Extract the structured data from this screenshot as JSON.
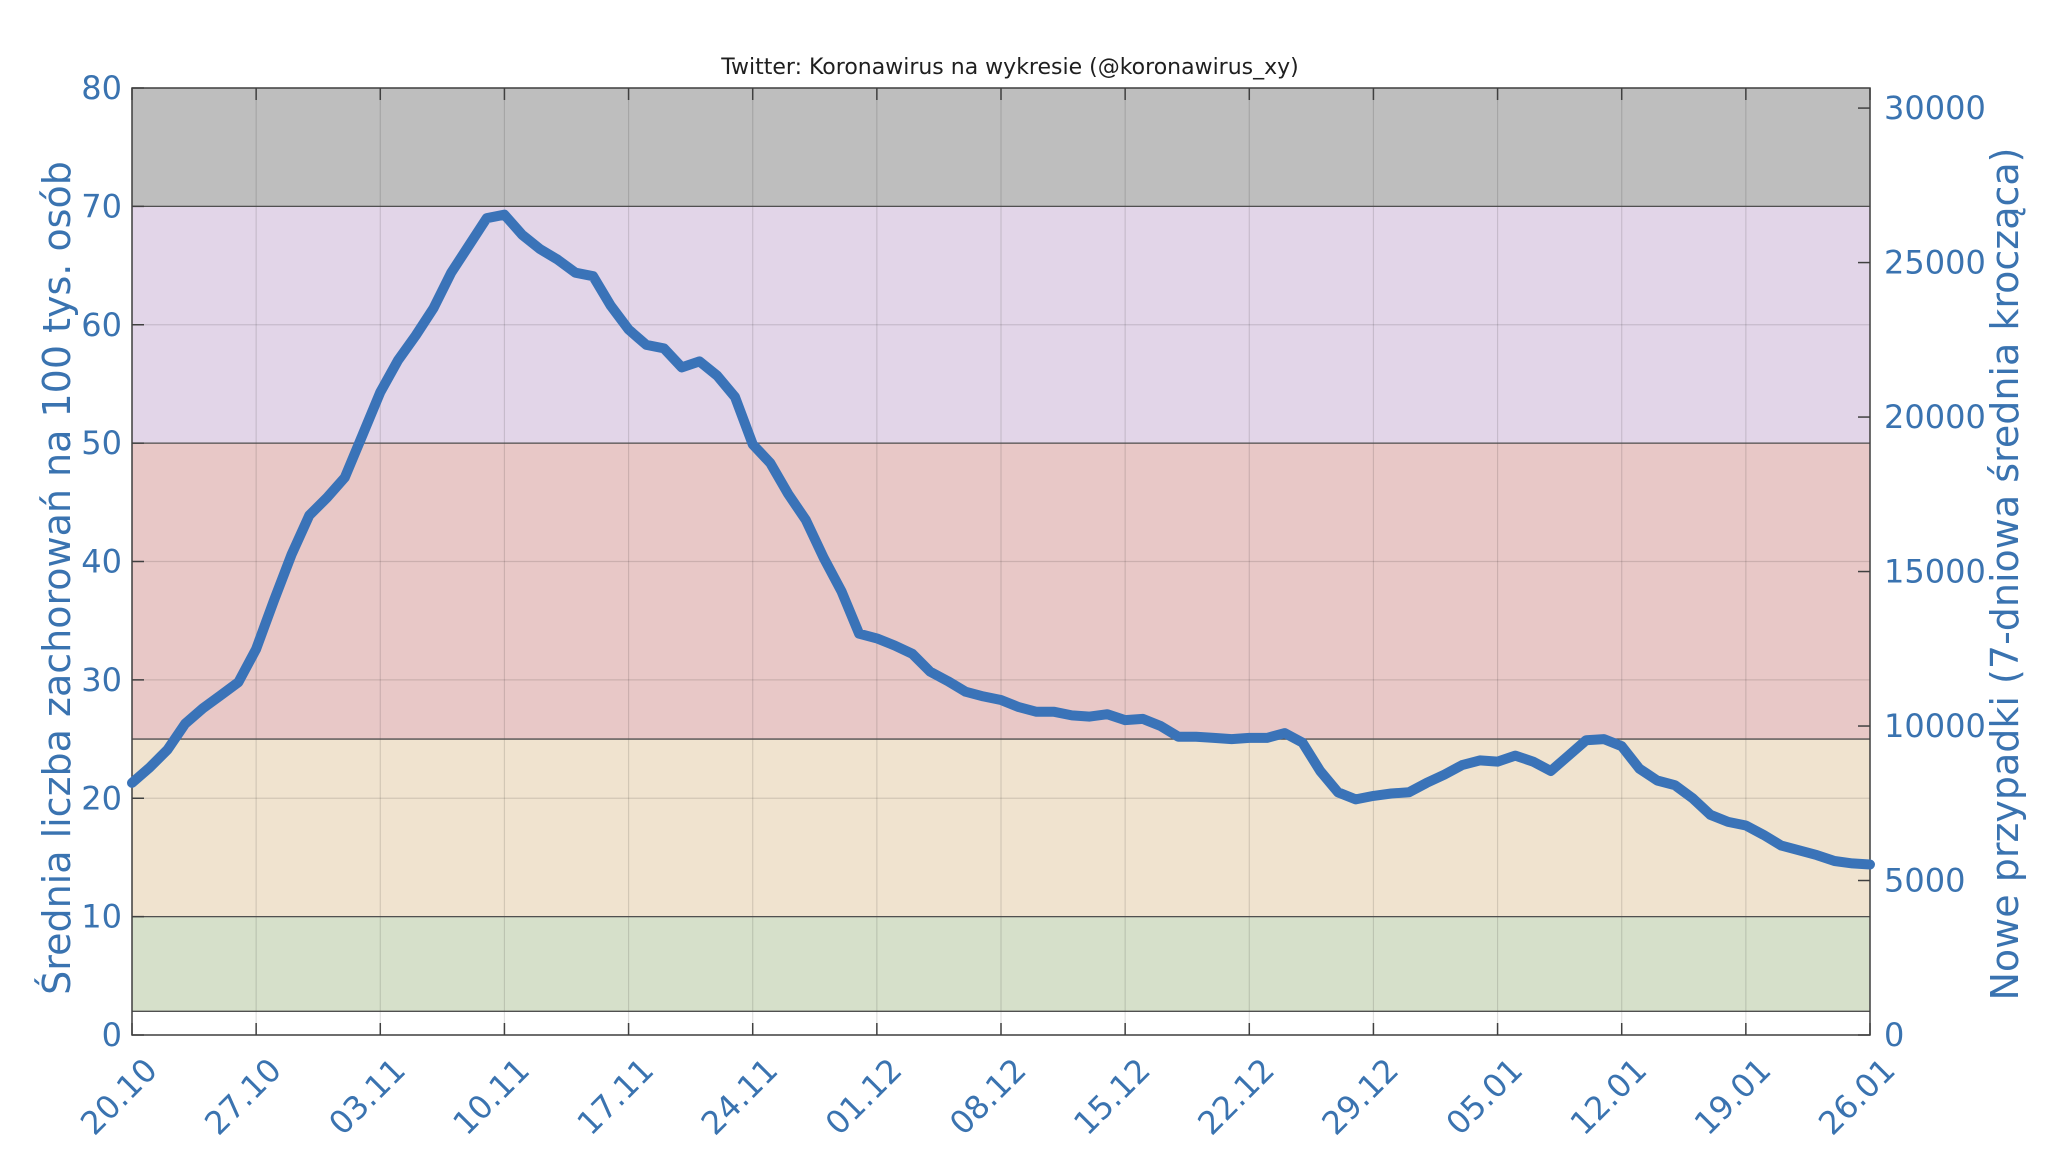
{
  "chart_data": {
    "type": "line",
    "title": "Twitter: Koronawirus na wykresie (@koronawirus_xy)",
    "ylabel_left": "Średnia liczba zachorowań na 100 tys. osób",
    "ylabel_right": "Nowe przypadki (7-dniowa średnia krocząca)",
    "ylim_left": [
      0,
      80
    ],
    "ylim_right": [
      0,
      30650
    ],
    "yticks_left": [
      0,
      10,
      20,
      30,
      40,
      50,
      60,
      70,
      80
    ],
    "yticks_left_labels": [
      "0",
      "10",
      "20",
      "30",
      "40",
      "50",
      "60",
      "70",
      "80"
    ],
    "yticks_right": [
      0,
      5000,
      10000,
      15000,
      20000,
      25000,
      30000
    ],
    "yticks_right_labels": [
      "0",
      "5000",
      "10000",
      "15000",
      "20000",
      "25000",
      "30000"
    ],
    "x_start": "2020-10-20",
    "x_end": "2021-01-26",
    "x_tick_labels": [
      "20.10",
      "27.10",
      "03.11",
      "10.11",
      "17.11",
      "24.11",
      "01.12",
      "08.12",
      "15.12",
      "22.12",
      "29.12",
      "05.01",
      "12.01",
      "19.01",
      "26.01"
    ],
    "x_tick_dates": [
      "2020-10-20",
      "2020-10-27",
      "2020-11-03",
      "2020-11-10",
      "2020-11-17",
      "2020-11-24",
      "2020-12-01",
      "2020-12-08",
      "2020-12-15",
      "2020-12-22",
      "2020-12-29",
      "2021-01-05",
      "2021-01-12",
      "2021-01-19",
      "2021-01-26"
    ],
    "grid": true,
    "bands_left": [
      {
        "from": 2,
        "to": 10,
        "color": "#d6e0ca"
      },
      {
        "from": 10,
        "to": 25,
        "color": "#f0e3cf"
      },
      {
        "from": 25,
        "to": 50,
        "color": "#e8c8c7"
      },
      {
        "from": 50,
        "to": 70,
        "color": "#e2d5e8"
      },
      {
        "from": 70,
        "to": 80,
        "color": "#bebebe"
      }
    ],
    "series": [
      {
        "color": "#3a73b8",
        "axis": "left",
        "x": [
          "2020-10-20",
          "2020-10-21",
          "2020-10-22",
          "2020-10-23",
          "2020-10-24",
          "2020-10-25",
          "2020-10-26",
          "2020-10-27",
          "2020-10-28",
          "2020-10-29",
          "2020-10-30",
          "2020-10-31",
          "2020-11-01",
          "2020-11-02",
          "2020-11-03",
          "2020-11-04",
          "2020-11-05",
          "2020-11-06",
          "2020-11-07",
          "2020-11-08",
          "2020-11-09",
          "2020-11-10",
          "2020-11-11",
          "2020-11-12",
          "2020-11-13",
          "2020-11-14",
          "2020-11-15",
          "2020-11-16",
          "2020-11-17",
          "2020-11-18",
          "2020-11-19",
          "2020-11-20",
          "2020-11-21",
          "2020-11-22",
          "2020-11-23",
          "2020-11-24",
          "2020-11-25",
          "2020-11-26",
          "2020-11-27",
          "2020-11-28",
          "2020-11-29",
          "2020-11-30",
          "2020-12-01",
          "2020-12-02",
          "2020-12-03",
          "2020-12-04",
          "2020-12-05",
          "2020-12-06",
          "2020-12-07",
          "2020-12-08",
          "2020-12-09",
          "2020-12-10",
          "2020-12-11",
          "2020-12-12",
          "2020-12-13",
          "2020-12-14",
          "2020-12-15",
          "2020-12-16",
          "2020-12-17",
          "2020-12-18",
          "2020-12-19",
          "2020-12-20",
          "2020-12-21",
          "2020-12-22",
          "2020-12-23",
          "2020-12-24",
          "2020-12-25",
          "2020-12-26",
          "2020-12-27",
          "2020-12-28",
          "2020-12-29",
          "2020-12-30",
          "2020-12-31",
          "2021-01-01",
          "2021-01-02",
          "2021-01-03",
          "2021-01-04",
          "2021-01-05",
          "2021-01-06",
          "2021-01-07",
          "2021-01-08",
          "2021-01-09",
          "2021-01-10",
          "2021-01-11",
          "2021-01-12",
          "2021-01-13",
          "2021-01-14",
          "2021-01-15",
          "2021-01-16",
          "2021-01-17",
          "2021-01-18",
          "2021-01-19",
          "2021-01-20",
          "2021-01-21",
          "2021-01-22",
          "2021-01-23",
          "2021-01-24",
          "2021-01-25",
          "2021-01-26"
        ],
        "values": [
          21.3,
          22.6,
          24.1,
          26.3,
          27.6,
          28.7,
          29.8,
          32.6,
          36.7,
          40.6,
          43.9,
          45.4,
          47.1,
          50.7,
          54.3,
          57.0,
          59.1,
          61.4,
          64.4,
          66.7,
          69.0,
          69.3,
          67.6,
          66.4,
          65.5,
          64.4,
          64.1,
          61.6,
          59.6,
          58.3,
          58.0,
          56.4,
          56.9,
          55.7,
          53.9,
          49.9,
          48.3,
          45.7,
          43.5,
          40.3,
          37.5,
          33.9,
          33.5,
          32.9,
          32.2,
          30.7,
          29.9,
          29.0,
          28.6,
          28.3,
          27.7,
          27.3,
          27.3,
          27.0,
          26.9,
          27.1,
          26.6,
          26.7,
          26.1,
          25.2,
          25.2,
          25.1,
          25.0,
          25.1,
          25.1,
          25.5,
          24.7,
          22.3,
          20.5,
          19.9,
          20.2,
          20.4,
          20.5,
          21.3,
          22.0,
          22.8,
          23.2,
          23.1,
          23.6,
          23.1,
          22.3,
          23.6,
          24.9,
          25.0,
          24.4,
          22.5,
          21.5,
          21.1,
          20.0,
          18.6,
          18.0,
          17.7,
          16.9,
          16.0,
          15.6,
          15.2,
          14.7,
          14.5,
          14.4
        ]
      }
    ]
  }
}
